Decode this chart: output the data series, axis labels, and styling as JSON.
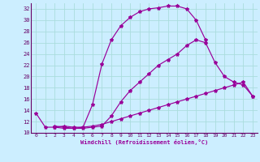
{
  "xlabel": "Windchill (Refroidissement éolien,°C)",
  "bg_color": "#cceeff",
  "line_color": "#990099",
  "grid_color": "#aadddd",
  "xlim": [
    -0.5,
    23.5
  ],
  "ylim": [
    10,
    33
  ],
  "yticks": [
    10,
    12,
    14,
    16,
    18,
    20,
    22,
    24,
    26,
    28,
    30,
    32
  ],
  "xticks": [
    0,
    1,
    2,
    3,
    4,
    5,
    6,
    7,
    8,
    9,
    10,
    11,
    12,
    13,
    14,
    15,
    16,
    17,
    18,
    19,
    20,
    21,
    22,
    23
  ],
  "series": [
    {
      "x": [
        0,
        1,
        2,
        3,
        4,
        5,
        6,
        7,
        8,
        9,
        10,
        11,
        12,
        13,
        14,
        15,
        16,
        17,
        18
      ],
      "y": [
        13.5,
        11.0,
        11.0,
        11.2,
        11.0,
        11.0,
        15.0,
        22.2,
        26.5,
        29.0,
        30.5,
        31.5,
        32.0,
        32.2,
        32.5,
        32.5,
        32.0,
        30.0,
        26.5
      ]
    },
    {
      "x": [
        2,
        3,
        4,
        5,
        6,
        7,
        8,
        9,
        10,
        11,
        12,
        13,
        14,
        15,
        16,
        17,
        18,
        19,
        20,
        21,
        22,
        23
      ],
      "y": [
        11.2,
        11.0,
        10.8,
        10.8,
        11.0,
        11.2,
        13.0,
        15.5,
        17.5,
        19.0,
        20.5,
        22.0,
        23.0,
        24.0,
        25.5,
        26.5,
        26.0,
        22.5,
        20.0,
        19.0,
        18.5,
        16.5
      ]
    },
    {
      "x": [
        2,
        3,
        4,
        5,
        6,
        7,
        8,
        9,
        10,
        11,
        12,
        13,
        14,
        15,
        16,
        17,
        18,
        19,
        20,
        21,
        22,
        23
      ],
      "y": [
        11.0,
        10.8,
        10.8,
        11.0,
        11.2,
        11.5,
        12.0,
        12.5,
        13.0,
        13.5,
        14.0,
        14.5,
        15.0,
        15.5,
        16.0,
        16.5,
        17.0,
        17.5,
        18.0,
        18.5,
        19.0,
        16.5
      ]
    }
  ]
}
